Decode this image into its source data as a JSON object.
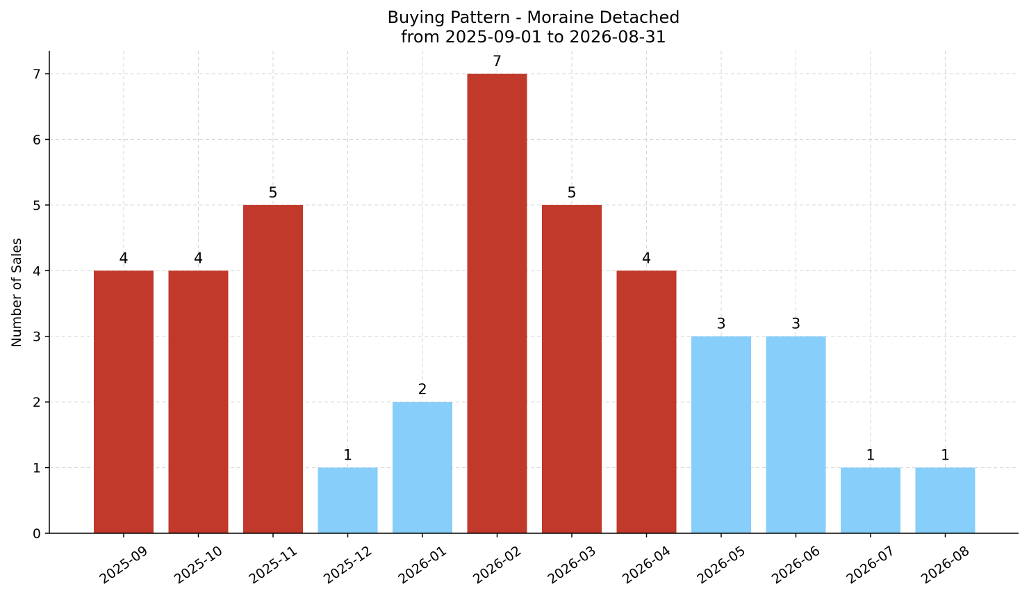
{
  "chart_data": {
    "type": "bar",
    "title": "Buying Pattern - Moraine Detached",
    "subtitle": "from 2025-09-01 to 2026-08-31",
    "xlabel": "",
    "ylabel": "Number of Sales",
    "categories": [
      "2025-09",
      "2025-10",
      "2025-11",
      "2025-12",
      "2026-01",
      "2026-02",
      "2026-03",
      "2026-04",
      "2026-05",
      "2026-06",
      "2026-07",
      "2026-08"
    ],
    "values": [
      4,
      4,
      5,
      1,
      2,
      7,
      5,
      4,
      3,
      3,
      1,
      1
    ],
    "bar_colors": [
      "#c0392b",
      "#c0392b",
      "#c0392b",
      "#87cefa",
      "#87cefa",
      "#c0392b",
      "#c0392b",
      "#c0392b",
      "#87cefa",
      "#87cefa",
      "#87cefa",
      "#87cefa"
    ],
    "ylim": [
      0,
      7.35
    ],
    "yticks": [
      0,
      1,
      2,
      3,
      4,
      5,
      6,
      7
    ],
    "grid": true,
    "data_labels": true
  }
}
